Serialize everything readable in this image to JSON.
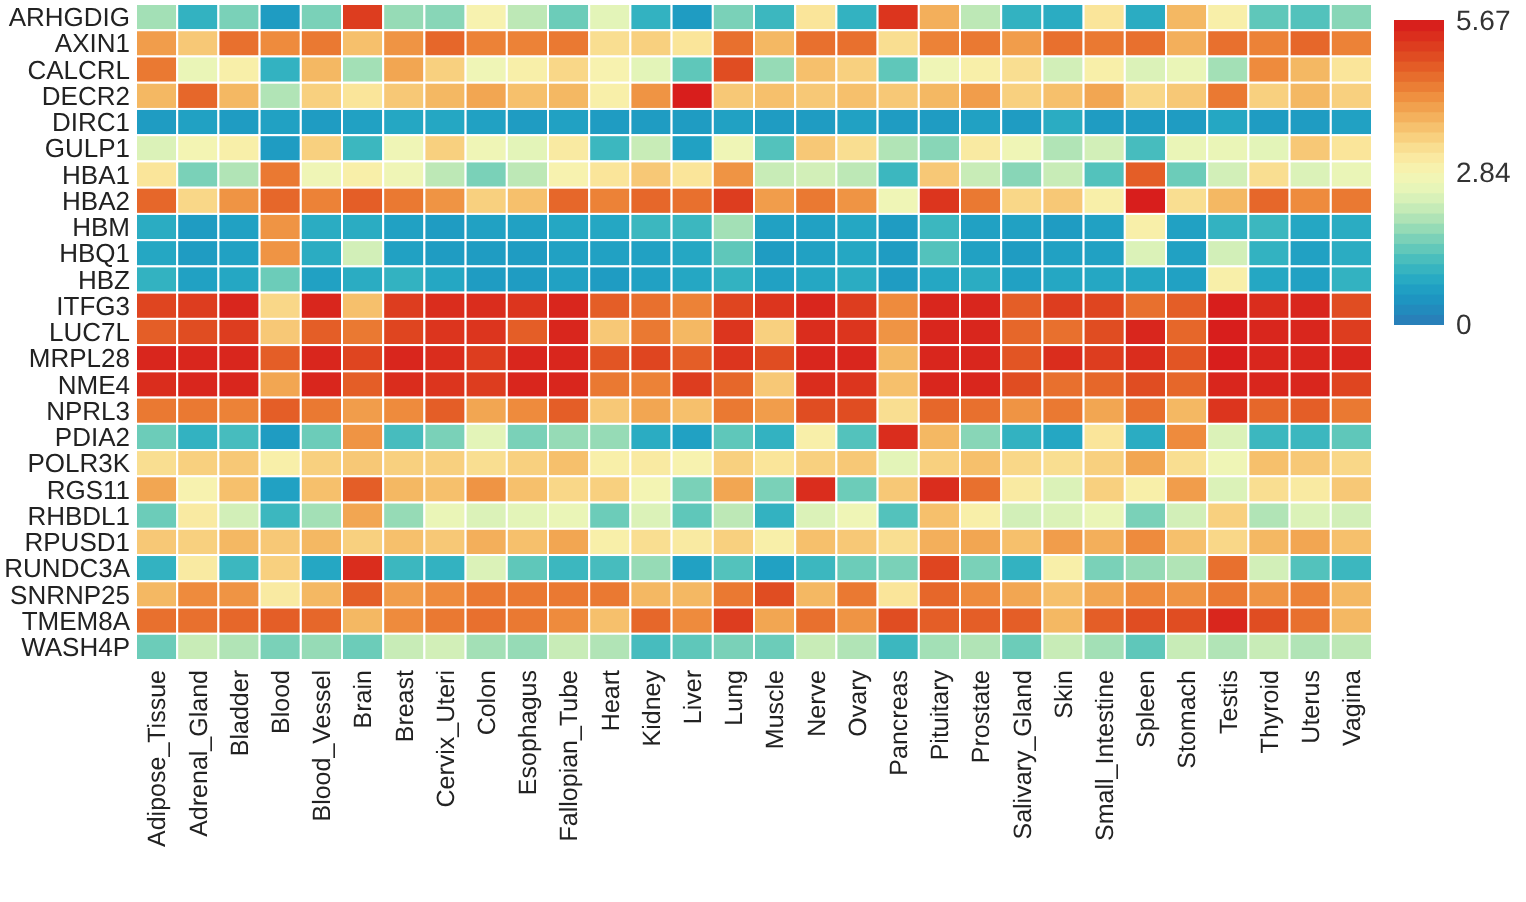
{
  "chart_data": {
    "type": "heatmap",
    "categories": [
      "Adipose_Tissue",
      "Adrenal_Gland",
      "Bladder",
      "Blood",
      "Blood_Vessel",
      "Brain",
      "Breast",
      "Cervix_Uteri",
      "Colon",
      "Esophagus",
      "Fallopian_Tube",
      "Heart",
      "Kidney",
      "Liver",
      "Lung",
      "Muscle",
      "Nerve",
      "Ovary",
      "Pancreas",
      "Pituitary",
      "Prostate",
      "Salivary_Gland",
      "Skin",
      "Small_Intestine",
      "Spleen",
      "Stomach",
      "Testis",
      "Thyroid",
      "Uterus",
      "Vagina"
    ],
    "y_categories": [
      "ARHGDIG",
      "AXIN1",
      "CALCRL",
      "DECR2",
      "DIRC1",
      "GULP1",
      "HBA1",
      "HBA2",
      "HBM",
      "HBQ1",
      "HBZ",
      "ITFG3",
      "LUC7L",
      "MRPL28",
      "NME4",
      "NPRL3",
      "PDIA2",
      "POLR3K",
      "RGS11",
      "RHBDL1",
      "RPUSD1",
      "RUNDC3A",
      "SNRNP25",
      "TMEM8A",
      "WASH4P"
    ],
    "cells": [
      [
        1.9,
        1.0,
        1.6,
        0.6,
        1.6,
        5.2,
        1.8,
        1.7,
        2.9,
        2.1,
        1.5,
        2.5,
        1.0,
        0.6,
        1.6,
        1.1,
        3.2,
        1.0,
        5.3,
        3.9,
        2.1,
        1.0,
        0.9,
        3.2,
        0.9,
        3.8,
        3.0,
        1.4,
        1.3,
        1.7
      ],
      [
        4.1,
        3.6,
        4.6,
        4.3,
        4.5,
        3.7,
        4.2,
        4.7,
        4.4,
        4.4,
        4.5,
        3.3,
        3.5,
        3.2,
        4.6,
        3.8,
        4.6,
        4.6,
        3.3,
        4.4,
        4.5,
        4.1,
        4.6,
        4.5,
        4.6,
        3.9,
        4.6,
        4.4,
        4.7,
        4.4
      ],
      [
        4.5,
        2.6,
        3.0,
        1.0,
        3.8,
        1.9,
        4.0,
        3.5,
        2.7,
        3.0,
        3.4,
        2.9,
        2.5,
        1.4,
        5.0,
        1.8,
        3.7,
        3.5,
        1.4,
        2.7,
        3.0,
        3.3,
        2.3,
        3.0,
        2.4,
        2.6,
        1.9,
        4.3,
        3.8,
        3.2
      ],
      [
        3.8,
        4.7,
        3.8,
        2.0,
        3.5,
        3.2,
        3.6,
        3.8,
        4.0,
        3.7,
        3.8,
        3.0,
        4.2,
        5.6,
        3.6,
        3.7,
        3.6,
        3.7,
        3.6,
        3.8,
        4.1,
        3.5,
        3.7,
        4.0,
        3.4,
        3.6,
        4.5,
        3.5,
        3.8,
        3.5
      ],
      [
        0.6,
        0.7,
        0.6,
        0.7,
        0.6,
        0.7,
        0.8,
        0.8,
        0.7,
        0.6,
        0.7,
        0.6,
        0.6,
        0.6,
        0.7,
        0.6,
        0.6,
        0.7,
        0.6,
        0.6,
        0.7,
        0.6,
        0.9,
        0.6,
        0.6,
        0.6,
        0.8,
        0.6,
        0.6,
        0.7
      ],
      [
        2.4,
        2.8,
        3.0,
        0.6,
        3.5,
        1.1,
        2.7,
        3.5,
        2.7,
        2.5,
        3.1,
        1.1,
        2.2,
        0.7,
        2.7,
        1.3,
        3.6,
        3.3,
        2.0,
        1.7,
        3.1,
        2.7,
        2.0,
        2.3,
        1.2,
        2.6,
        2.6,
        2.5,
        3.6,
        3.2
      ],
      [
        3.2,
        1.6,
        2.0,
        4.5,
        2.7,
        3.0,
        2.7,
        2.1,
        1.6,
        2.1,
        2.9,
        3.2,
        3.6,
        3.2,
        4.2,
        2.2,
        2.3,
        2.1,
        1.1,
        3.6,
        2.2,
        1.7,
        2.2,
        1.3,
        4.8,
        1.5,
        2.3,
        3.3,
        2.4,
        2.6
      ],
      [
        4.7,
        3.4,
        4.2,
        4.7,
        4.4,
        4.8,
        4.5,
        4.2,
        3.5,
        3.7,
        4.7,
        4.4,
        4.7,
        4.6,
        5.2,
        4.1,
        4.5,
        4.2,
        2.7,
        5.3,
        4.5,
        3.4,
        3.6,
        3.0,
        5.6,
        3.3,
        3.8,
        4.7,
        4.3,
        4.5
      ],
      [
        0.9,
        0.6,
        0.7,
        4.2,
        0.9,
        0.9,
        0.7,
        0.6,
        0.7,
        0.7,
        0.8,
        0.8,
        1.1,
        1.1,
        1.9,
        0.7,
        0.7,
        0.8,
        0.6,
        1.1,
        0.7,
        0.7,
        0.6,
        0.7,
        3.0,
        0.7,
        1.0,
        1.1,
        0.8,
        0.9
      ],
      [
        0.8,
        0.6,
        0.7,
        4.2,
        0.9,
        2.3,
        0.7,
        0.6,
        0.6,
        0.6,
        0.7,
        0.7,
        0.7,
        0.8,
        1.4,
        0.6,
        0.7,
        0.8,
        0.6,
        1.3,
        0.7,
        0.6,
        0.7,
        0.7,
        2.4,
        0.7,
        2.3,
        1.0,
        0.7,
        0.9
      ],
      [
        1.0,
        0.7,
        0.8,
        1.5,
        0.7,
        0.9,
        1.0,
        0.8,
        0.6,
        0.6,
        0.7,
        0.6,
        0.7,
        0.8,
        1.0,
        0.7,
        0.8,
        0.9,
        0.6,
        0.8,
        0.9,
        0.7,
        0.8,
        0.8,
        0.8,
        0.7,
        3.0,
        0.8,
        0.7,
        1.0
      ],
      [
        5.1,
        5.2,
        5.5,
        3.4,
        5.5,
        3.7,
        5.2,
        5.4,
        5.4,
        5.3,
        5.5,
        4.8,
        4.6,
        4.4,
        5.1,
        5.3,
        5.5,
        5.2,
        4.3,
        5.5,
        5.5,
        4.8,
        5.2,
        5.1,
        4.6,
        4.8,
        5.6,
        5.4,
        5.5,
        5.0
      ],
      [
        4.8,
        5.0,
        5.2,
        3.6,
        4.8,
        4.5,
        5.1,
        5.3,
        5.3,
        4.8,
        5.5,
        3.6,
        4.5,
        3.8,
        5.3,
        3.5,
        5.4,
        5.3,
        4.2,
        5.5,
        5.5,
        4.7,
        4.6,
        5.0,
        5.5,
        4.7,
        5.6,
        5.5,
        5.5,
        5.2
      ],
      [
        5.5,
        5.5,
        5.5,
        4.8,
        5.5,
        5.1,
        5.5,
        5.4,
        5.2,
        5.5,
        5.5,
        4.9,
        5.1,
        4.8,
        5.3,
        5.0,
        5.5,
        5.5,
        3.8,
        5.5,
        5.5,
        4.9,
        5.4,
        5.2,
        5.4,
        4.9,
        5.6,
        5.5,
        5.5,
        5.5
      ],
      [
        5.4,
        5.5,
        5.5,
        4.0,
        5.5,
        4.8,
        5.4,
        5.3,
        5.2,
        5.5,
        5.5,
        4.5,
        4.4,
        5.2,
        4.7,
        3.6,
        5.4,
        5.3,
        3.7,
        5.5,
        5.5,
        5.0,
        4.6,
        4.7,
        5.0,
        4.7,
        5.5,
        5.5,
        5.5,
        5.1
      ],
      [
        4.5,
        4.5,
        4.4,
        4.8,
        4.5,
        4.1,
        4.3,
        4.8,
        4.0,
        4.3,
        4.8,
        3.6,
        4.0,
        3.7,
        4.5,
        4.1,
        5.0,
        5.0,
        3.3,
        4.7,
        4.6,
        4.2,
        4.5,
        4.0,
        4.6,
        3.8,
        5.3,
        4.7,
        4.8,
        4.5
      ],
      [
        1.5,
        1.0,
        1.2,
        0.6,
        1.5,
        4.2,
        1.2,
        1.6,
        2.5,
        1.6,
        1.8,
        1.8,
        0.9,
        0.7,
        1.4,
        1.0,
        3.0,
        1.3,
        5.4,
        3.8,
        1.7,
        1.0,
        0.8,
        3.2,
        0.9,
        4.3,
        2.4,
        1.1,
        1.1,
        1.4
      ],
      [
        3.3,
        3.5,
        3.6,
        3.0,
        3.5,
        3.6,
        3.5,
        3.5,
        3.3,
        3.5,
        3.7,
        3.0,
        3.1,
        2.9,
        3.5,
        3.2,
        3.5,
        3.6,
        2.5,
        3.5,
        3.7,
        3.4,
        3.3,
        3.5,
        4.0,
        3.3,
        2.7,
        3.7,
        3.6,
        3.4
      ],
      [
        4.0,
        2.9,
        3.7,
        0.7,
        3.7,
        4.8,
        3.8,
        3.7,
        4.2,
        3.7,
        3.4,
        3.5,
        2.8,
        1.6,
        4.0,
        1.6,
        5.4,
        1.5,
        3.6,
        5.4,
        4.6,
        3.1,
        2.4,
        3.5,
        3.0,
        4.1,
        2.4,
        3.3,
        3.1,
        3.6
      ],
      [
        1.5,
        3.1,
        2.3,
        1.1,
        1.9,
        4.0,
        1.8,
        2.6,
        2.4,
        2.5,
        2.6,
        1.5,
        2.4,
        1.4,
        2.1,
        1.0,
        2.4,
        2.7,
        1.3,
        3.7,
        3.0,
        2.3,
        2.4,
        2.6,
        1.6,
        2.3,
        3.5,
        2.0,
        2.4,
        2.3
      ],
      [
        3.6,
        3.5,
        3.8,
        3.6,
        3.8,
        3.5,
        3.7,
        3.6,
        3.9,
        3.7,
        4.0,
        3.0,
        3.3,
        3.1,
        3.5,
        3.0,
        3.7,
        3.6,
        3.3,
        3.9,
        4.0,
        3.7,
        4.1,
        3.9,
        4.3,
        3.7,
        3.4,
        3.8,
        4.0,
        3.7
      ],
      [
        1.0,
        3.1,
        1.1,
        3.5,
        0.8,
        5.4,
        1.1,
        1.0,
        2.4,
        1.4,
        1.1,
        1.2,
        1.8,
        0.7,
        1.3,
        0.7,
        1.1,
        1.5,
        1.6,
        5.1,
        1.6,
        1.0,
        3.0,
        1.6,
        1.8,
        2.0,
        4.6,
        2.3,
        1.3,
        1.1
      ],
      [
        3.8,
        4.3,
        4.2,
        3.1,
        3.8,
        4.8,
        4.1,
        4.3,
        4.5,
        4.5,
        4.5,
        4.5,
        3.8,
        3.8,
        4.5,
        5.0,
        3.8,
        4.5,
        3.2,
        4.7,
        4.3,
        4.0,
        3.7,
        4.0,
        4.3,
        4.2,
        4.5,
        4.2,
        4.4,
        3.8
      ],
      [
        4.6,
        4.6,
        4.7,
        4.8,
        4.7,
        3.8,
        4.3,
        4.5,
        4.6,
        4.5,
        4.3,
        3.7,
        4.7,
        4.3,
        5.2,
        4.0,
        4.6,
        4.2,
        5.0,
        4.8,
        4.8,
        4.8,
        3.8,
        4.8,
        5.0,
        5.0,
        5.5,
        5.0,
        4.6,
        3.8
      ],
      [
        1.5,
        2.2,
        2.0,
        1.6,
        1.8,
        1.5,
        2.2,
        2.3,
        1.9,
        1.8,
        2.2,
        2.0,
        1.2,
        1.4,
        1.6,
        1.5,
        2.2,
        2.0,
        1.1,
        1.9,
        2.0,
        1.5,
        2.2,
        1.9,
        1.4,
        2.2,
        2.0,
        2.2,
        2.0,
        2.1
      ]
    ],
    "clim": [
      0,
      5.67
    ],
    "cticks": [
      0,
      2.84,
      5.67
    ]
  }
}
